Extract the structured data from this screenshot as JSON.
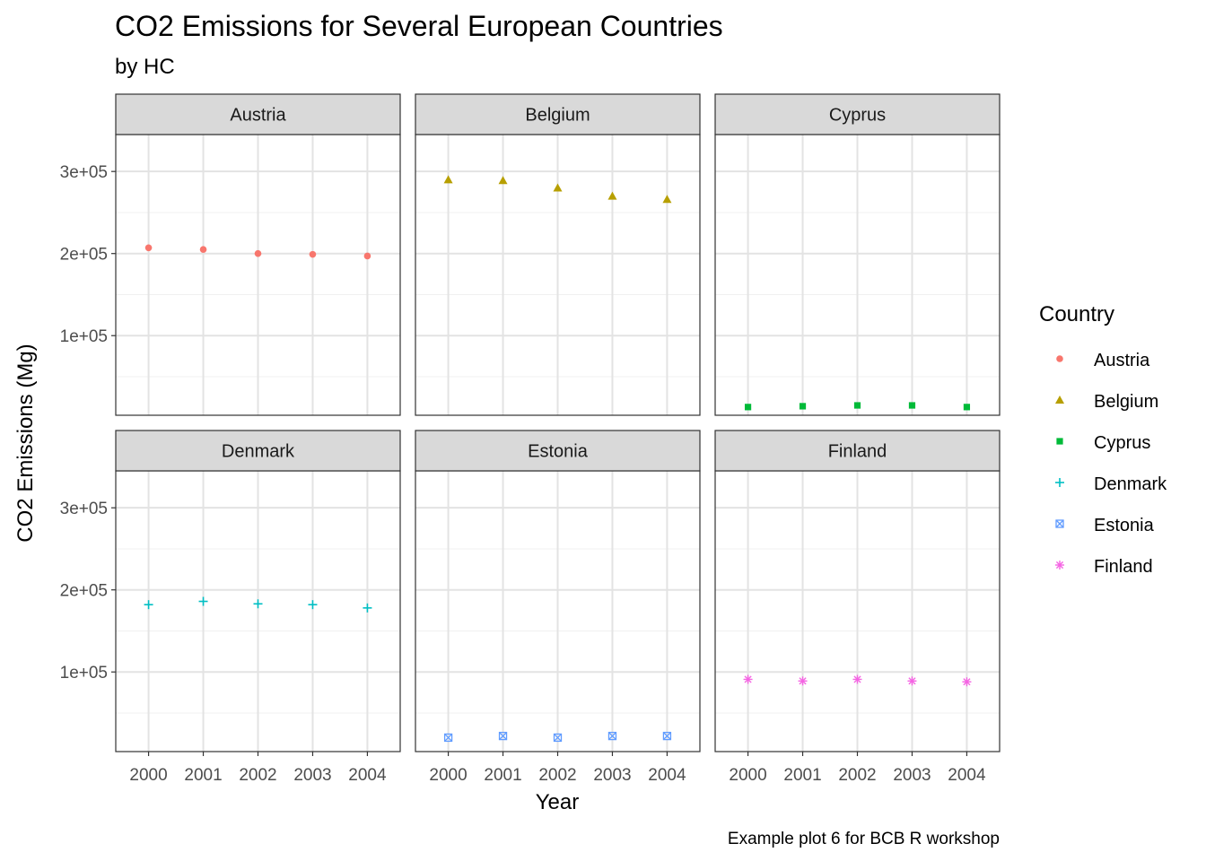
{
  "chart_data": {
    "type": "scatter",
    "title": "CO2 Emissions for Several European Countries",
    "subtitle": "by HC",
    "caption": "Example plot 6 for BCB R workshop",
    "xlabel": "Year",
    "ylabel": "CO2 Emissions (Mg)",
    "x": [
      2000,
      2001,
      2002,
      2003,
      2004
    ],
    "x_tick_labels": [
      "2000",
      "2001",
      "2002",
      "2003",
      "2004"
    ],
    "y_ticks": [
      100000,
      200000,
      300000
    ],
    "y_tick_labels": [
      "1e+05",
      "2e+05",
      "3e+05"
    ],
    "ylim": [
      3000,
      345000
    ],
    "grid": true,
    "legend": {
      "title": "Country",
      "position": "right"
    },
    "series": [
      {
        "name": "Austria",
        "color": "#F8766D",
        "shape": "circle",
        "values": [
          207000,
          205000,
          200000,
          199000,
          197000
        ]
      },
      {
        "name": "Belgium",
        "color": "#B79F00",
        "shape": "triangle",
        "values": [
          290000,
          289000,
          280000,
          270000,
          266000
        ]
      },
      {
        "name": "Cyprus",
        "color": "#00BA38",
        "shape": "square",
        "values": [
          13000,
          14000,
          15000,
          15000,
          13000
        ]
      },
      {
        "name": "Denmark",
        "color": "#00BFC4",
        "shape": "plus",
        "values": [
          182000,
          186000,
          183000,
          182000,
          178000
        ]
      },
      {
        "name": "Estonia",
        "color": "#619CFF",
        "shape": "square-cross",
        "values": [
          20000,
          22000,
          20000,
          22000,
          22000
        ]
      },
      {
        "name": "Finland",
        "color": "#F564E3",
        "shape": "asterisk",
        "values": [
          91000,
          89000,
          91000,
          89000,
          88000
        ]
      }
    ]
  }
}
